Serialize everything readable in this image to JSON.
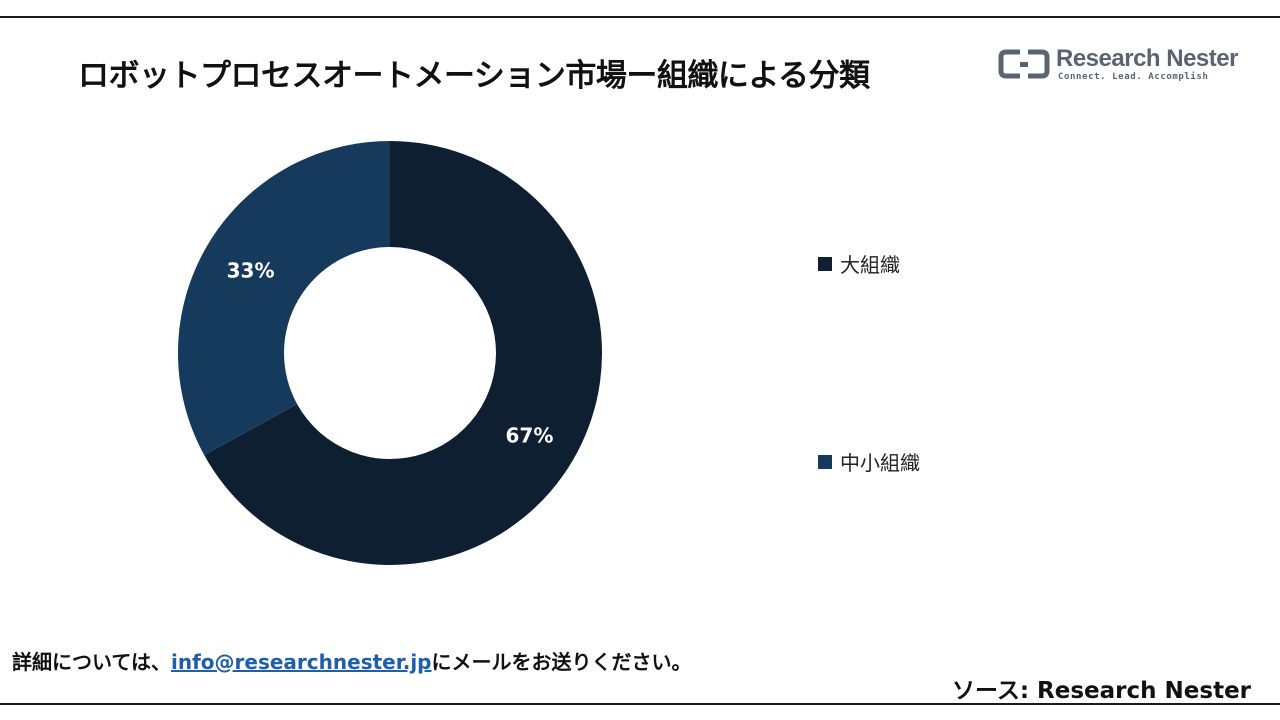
{
  "header": {
    "title": "ロボットプロセスオートメーション市場ー組織による分類"
  },
  "logo": {
    "name": "Research Nester",
    "tagline": "Connect. Lead. Accomplish",
    "color": "#5a6470"
  },
  "chart_data": {
    "type": "pie",
    "variant": "donut",
    "categories": [
      "大組織",
      "中小組織"
    ],
    "values": [
      67,
      33
    ],
    "labels": [
      "67%",
      "33%"
    ],
    "colors": [
      "#0d1f30",
      "#163a5c"
    ],
    "legend_position": "right"
  },
  "footer": {
    "note_prefix": "詳細については、",
    "email": "info@researchnester.jp",
    "note_suffix": "にメールをお送りください。",
    "source": "ソース: Research Nester"
  }
}
